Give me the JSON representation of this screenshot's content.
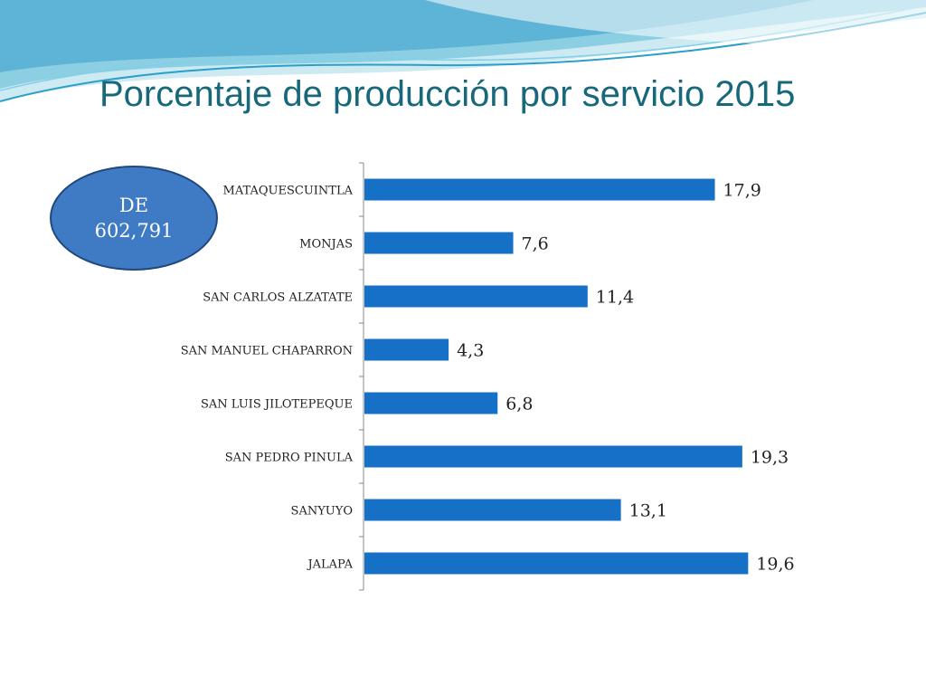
{
  "title": "Porcentaje de producción por servicio 2015",
  "badge": {
    "line1": "DE",
    "line2": "602,791"
  },
  "colors": {
    "bar": "#1570c6",
    "title": "#17687a",
    "badge": "#3f7ac4"
  },
  "chart_data": {
    "type": "bar",
    "orientation": "horizontal",
    "categories": [
      "MATAQUESCUINTLA",
      "MONJAS",
      "SAN CARLOS ALZATATE",
      "SAN MANUEL CHAPARRON",
      "SAN LUIS JILOTEPEQUE",
      "SAN PEDRO PINULA",
      "SANYUYO",
      "JALAPA"
    ],
    "values": [
      17.9,
      7.6,
      11.4,
      4.3,
      6.8,
      19.3,
      13.1,
      19.6
    ],
    "value_labels": [
      "17,9",
      "7,6",
      "11,4",
      "4,3",
      "6,8",
      "19,3",
      "13,1",
      "19,6"
    ],
    "xlim": [
      0,
      20
    ],
    "grid": false,
    "legend": "none"
  }
}
